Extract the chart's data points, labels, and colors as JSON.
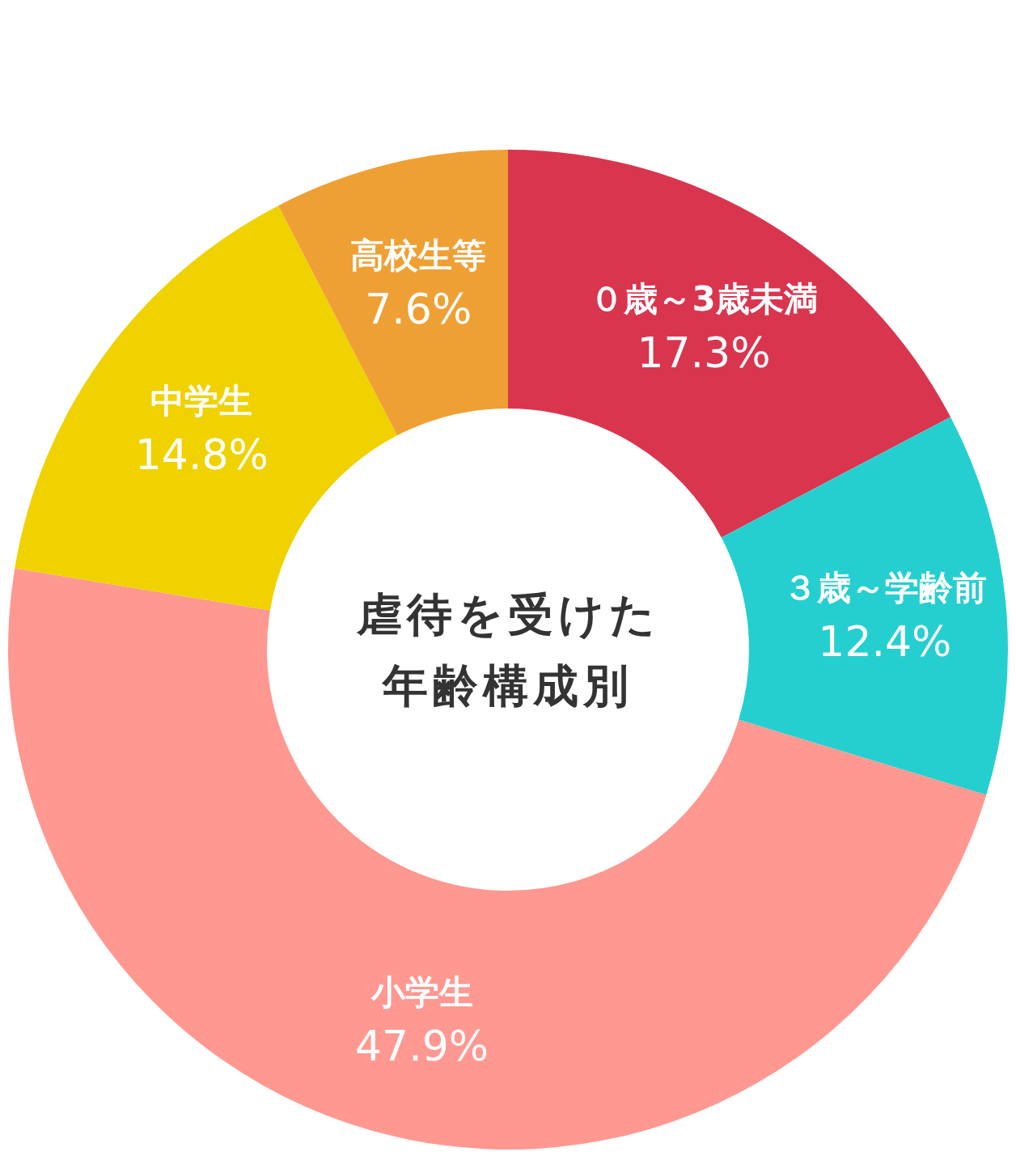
{
  "chart_data": {
    "type": "donut",
    "title": "虐待を受けた年齢構成別",
    "categories": [
      "０歳～3歳未満",
      "３歳～学齢前",
      "小学生",
      "中学生",
      "高校生等"
    ],
    "values": [
      17.3,
      12.4,
      47.9,
      14.8,
      7.6
    ],
    "colors": [
      "#d9354f",
      "#26cfcf",
      "#ff9891",
      "#efd200",
      "#efa034"
    ],
    "value_labels": [
      "17.3%",
      "12.4%",
      "47.9%",
      "14.8%",
      "7.6%"
    ]
  }
}
